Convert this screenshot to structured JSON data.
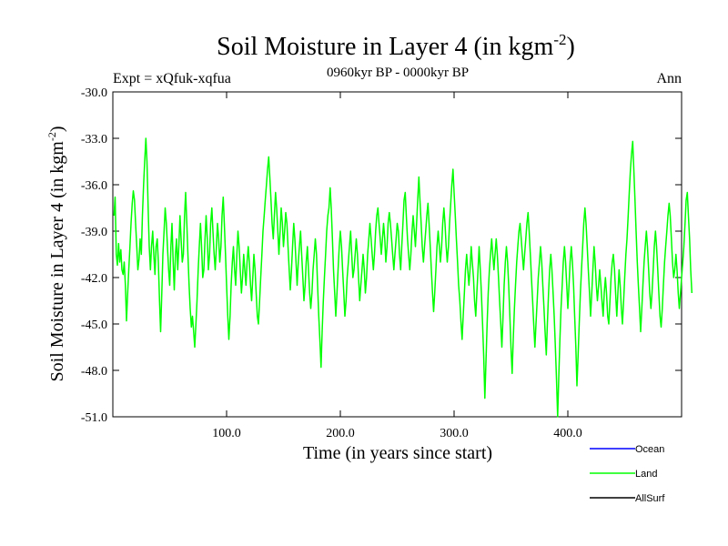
{
  "chart_data": {
    "type": "line",
    "title": "Soil Moisture in Layer 4 (in kgm",
    "title_sup": "-2",
    "title_close": ")",
    "subtitle": "0960kyr BP - 0000kyr BP",
    "expt_label": "Expt = xQfuk-xqfua",
    "period_label": "Ann",
    "xlabel": "Time (in years since start)",
    "ylabel": "Soil Moisture in Layer 4 (in kgm",
    "ylabel_sup": "-2",
    "ylabel_close": ")",
    "xlim": [
      0,
      500
    ],
    "ylim": [
      -51.0,
      -30.0
    ],
    "x_ticks": [
      100,
      200,
      300,
      400
    ],
    "x_tick_labels": [
      "100.0",
      "200.0",
      "300.0",
      "400.0"
    ],
    "y_ticks": [
      -30,
      -33,
      -36,
      -39,
      -42,
      -45,
      -48,
      -51
    ],
    "y_tick_labels": [
      "-30.0",
      "-33.0",
      "-36.0",
      "-39.0",
      "-42.0",
      "-45.0",
      "-48.0",
      "-51.0"
    ],
    "legend": [
      {
        "name": "Ocean",
        "color": "#0000ff"
      },
      {
        "name": "Land",
        "color": "#00ff00"
      },
      {
        "name": "AllSurf",
        "color": "#000000"
      }
    ],
    "series": [
      {
        "name": "Land",
        "color": "#00ff00",
        "x_start": 1,
        "x_step": 1,
        "values": [
          -38.0,
          -36.8,
          -40.5,
          -41.2,
          -39.8,
          -41.0,
          -40.2,
          -41.5,
          -41.8,
          -41.0,
          -42.5,
          -44.8,
          -43.0,
          -41.5,
          -40.0,
          -38.5,
          -37.2,
          -36.4,
          -37.0,
          -38.5,
          -40.0,
          -41.5,
          -40.8,
          -39.5,
          -40.5,
          -38.0,
          -36.0,
          -34.5,
          -33.0,
          -34.5,
          -37.5,
          -40.0,
          -41.5,
          -40.0,
          -39.0,
          -40.5,
          -41.8,
          -40.0,
          -39.5,
          -41.0,
          -43.5,
          -45.5,
          -43.0,
          -40.5,
          -39.0,
          -37.5,
          -38.5,
          -40.0,
          -41.5,
          -42.5,
          -40.0,
          -38.5,
          -41.0,
          -42.8,
          -40.5,
          -39.5,
          -41.5,
          -40.0,
          -38.0,
          -39.5,
          -41.0,
          -40.5,
          -38.0,
          -36.5,
          -38.5,
          -40.5,
          -42.5,
          -44.0,
          -45.2,
          -44.5,
          -45.5,
          -46.5,
          -45.0,
          -43.5,
          -41.5,
          -40.0,
          -38.5,
          -40.0,
          -42.0,
          -41.5,
          -39.5,
          -38.0,
          -39.5,
          -41.5,
          -40.5,
          -38.5,
          -37.5,
          -39.0,
          -40.5,
          -41.5,
          -40.0,
          -38.5,
          -39.5,
          -41.0,
          -40.0,
          -38.0,
          -36.8,
          -38.5,
          -40.5,
          -42.5,
          -44.5,
          -46.0,
          -44.5,
          -42.5,
          -41.0,
          -40.0,
          -41.5,
          -42.5,
          -40.5,
          -39.0,
          -40.0,
          -41.5,
          -43.0,
          -42.0,
          -40.5,
          -41.5,
          -42.5,
          -41.0,
          -40.0,
          -41.0,
          -42.5,
          -43.5,
          -42.0,
          -40.5,
          -41.5,
          -43.0,
          -44.5,
          -45.0,
          -43.5,
          -42.0,
          -40.5,
          -39.0,
          -38.0,
          -37.0,
          -36.0,
          -35.0,
          -34.2,
          -35.5,
          -37.0,
          -38.5,
          -39.5,
          -38.0,
          -36.5,
          -37.5,
          -39.0,
          -40.5,
          -39.0,
          -37.5,
          -38.5,
          -40.0,
          -39.0,
          -37.8,
          -38.5,
          -40.0,
          -41.5,
          -42.8,
          -41.5,
          -40.0,
          -38.5,
          -39.5,
          -41.0,
          -42.5,
          -41.0,
          -40.0,
          -39.0,
          -40.5,
          -42.0,
          -43.5,
          -42.5,
          -41.0,
          -40.0,
          -41.5,
          -43.0,
          -44.0,
          -43.0,
          -41.5,
          -40.5,
          -39.5,
          -40.5,
          -42.5,
          -44.5,
          -46.0,
          -47.8,
          -45.5,
          -43.5,
          -42.0,
          -40.5,
          -39.0,
          -38.0,
          -37.5,
          -36.2,
          -37.5,
          -39.5,
          -41.5,
          -43.0,
          -44.5,
          -43.0,
          -41.5,
          -40.0,
          -39.0,
          -40.0,
          -41.5,
          -43.0,
          -44.5,
          -43.5,
          -42.0,
          -41.0,
          -40.0,
          -39.0,
          -40.5,
          -42.0,
          -41.5,
          -40.5,
          -39.5,
          -40.5,
          -42.0,
          -43.5,
          -42.5,
          -41.5,
          -40.5,
          -41.5,
          -43.0,
          -42.0,
          -40.5,
          -39.5,
          -38.5,
          -39.5,
          -40.5,
          -41.5,
          -40.5,
          -39.0,
          -38.0,
          -37.5,
          -38.5,
          -39.5,
          -40.5,
          -39.5,
          -38.5,
          -39.5,
          -41.0,
          -40.0,
          -38.5,
          -37.8,
          -38.5,
          -39.5,
          -40.5,
          -41.5,
          -40.5,
          -39.5,
          -38.5,
          -39.0,
          -40.5,
          -41.5,
          -40.0,
          -38.5,
          -37.0,
          -36.5,
          -38.0,
          -39.5,
          -40.5,
          -41.5,
          -40.5,
          -39.0,
          -38.0,
          -39.0,
          -40.0,
          -38.5,
          -37.0,
          -35.5,
          -37.0,
          -38.5,
          -40.0,
          -41.0,
          -40.0,
          -39.0,
          -38.0,
          -37.2,
          -38.5,
          -40.0,
          -41.5,
          -43.0,
          -44.2,
          -43.0,
          -41.5,
          -40.0,
          -39.0,
          -40.0,
          -41.0,
          -40.0,
          -38.5,
          -37.5,
          -38.5,
          -40.0,
          -41.0,
          -40.0,
          -38.5,
          -37.2,
          -36.0,
          -35.0,
          -36.5,
          -38.0,
          -39.5,
          -41.0,
          -42.5,
          -43.5,
          -44.8,
          -46.0,
          -44.5,
          -43.0,
          -41.5,
          -40.5,
          -41.5,
          -42.5,
          -41.5,
          -40.0,
          -41.0,
          -42.0,
          -43.5,
          -44.5,
          -43.0,
          -41.5,
          -40.0,
          -41.5,
          -43.0,
          -45.0,
          -47.0,
          -49.8,
          -47.5,
          -45.0,
          -43.0,
          -41.5,
          -40.5,
          -39.5,
          -40.5,
          -41.5,
          -40.5,
          -39.5,
          -40.5,
          -42.0,
          -43.5,
          -45.0,
          -46.5,
          -44.5,
          -42.5,
          -41.0,
          -40.0,
          -41.0,
          -42.5,
          -44.5,
          -46.5,
          -48.2,
          -46.0,
          -44.0,
          -42.5,
          -41.0,
          -40.0,
          -39.0,
          -38.5,
          -39.5,
          -40.5,
          -41.5,
          -40.5,
          -39.5,
          -38.5,
          -37.8,
          -39.0,
          -40.5,
          -42.0,
          -43.5,
          -45.0,
          -46.5,
          -45.0,
          -43.5,
          -42.0,
          -41.0,
          -40.0,
          -41.0,
          -42.5,
          -44.0,
          -45.5,
          -47.0,
          -45.0,
          -43.0,
          -41.5,
          -40.5,
          -41.5,
          -43.0,
          -44.5,
          -46.5,
          -48.5,
          -51.0,
          -48.5,
          -46.0,
          -44.0,
          -42.5,
          -41.0,
          -40.0,
          -41.0,
          -42.5,
          -44.0,
          -42.5,
          -41.0,
          -40.0,
          -41.0,
          -42.5,
          -44.5,
          -46.5,
          -49.0,
          -47.0,
          -45.0,
          -43.0,
          -41.5,
          -40.0,
          -38.5,
          -37.5,
          -38.5,
          -40.0,
          -41.5,
          -43.0,
          -44.5,
          -43.0,
          -41.5,
          -40.0,
          -41.0,
          -42.5,
          -43.5,
          -42.5,
          -41.5,
          -42.5,
          -43.5,
          -44.5,
          -43.0,
          -42.0,
          -43.0,
          -44.5,
          -45.0,
          -43.5,
          -42.0,
          -41.0,
          -40.5,
          -41.5,
          -43.0,
          -44.5,
          -43.0,
          -41.5,
          -42.5,
          -44.0,
          -45.0,
          -43.5,
          -42.0,
          -40.5,
          -39.5,
          -38.0,
          -36.5,
          -35.0,
          -34.0,
          -33.2,
          -35.0,
          -37.0,
          -39.0,
          -41.0,
          -42.5,
          -44.0,
          -45.5,
          -44.0,
          -42.5,
          -41.0,
          -40.0,
          -39.0,
          -40.0,
          -41.5,
          -43.0,
          -44.0,
          -43.0,
          -41.5,
          -40.0,
          -39.0,
          -40.0,
          -41.5,
          -43.0,
          -44.5,
          -45.2,
          -44.0,
          -42.5,
          -41.0,
          -40.0,
          -39.0,
          -38.0,
          -37.2,
          -38.0,
          -39.5,
          -41.0,
          -42.0,
          -41.5,
          -40.5,
          -41.5,
          -43.0,
          -44.0,
          -43.0,
          -42.0,
          -41.0,
          -40.0,
          -38.5,
          -37.0,
          -36.5,
          -38.0,
          -39.5,
          -41.5,
          -43.0
        ]
      }
    ]
  }
}
